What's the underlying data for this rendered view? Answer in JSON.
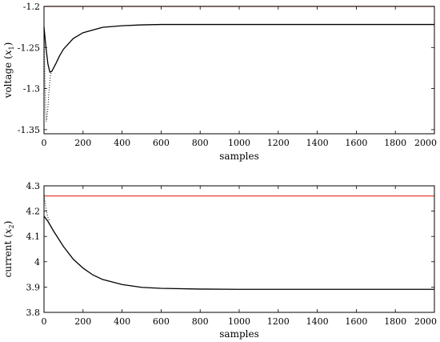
{
  "chart_data": [
    {
      "type": "line",
      "xlabel": "samples",
      "ylabel": "voltage (x1)",
      "ylabel_main": "voltage",
      "ylabel_var": "x",
      "ylabel_sub": "1",
      "xlim": [
        0,
        2000
      ],
      "ylim": [
        -1.355,
        -1.2
      ],
      "xticks": [
        0,
        200,
        400,
        600,
        800,
        1000,
        1200,
        1400,
        1600,
        1800,
        2000
      ],
      "yticks": [
        -1.35,
        -1.3,
        -1.25,
        -1.2
      ],
      "ytick_labels": [
        "-1.35",
        "-1.3",
        "-1.25",
        "-1.2"
      ],
      "grid": false,
      "reference": {
        "y": -1.2,
        "color": "#e8443a"
      },
      "series": [
        {
          "style": "dotted",
          "color": "#000000",
          "points": [
            [
              0,
              -1.22
            ],
            [
              2,
              -1.25
            ],
            [
              5,
              -1.29
            ],
            [
              8,
              -1.32
            ],
            [
              12,
              -1.34
            ],
            [
              18,
              -1.33
            ],
            [
              25,
              -1.305
            ],
            [
              32,
              -1.285
            ],
            [
              40,
              -1.278
            ]
          ]
        },
        {
          "style": "solid",
          "color": "#000000",
          "points": [
            [
              0,
              -1.225
            ],
            [
              10,
              -1.25
            ],
            [
              20,
              -1.27
            ],
            [
              30,
              -1.28
            ],
            [
              40,
              -1.279
            ],
            [
              60,
              -1.27
            ],
            [
              80,
              -1.26
            ],
            [
              100,
              -1.252
            ],
            [
              150,
              -1.239
            ],
            [
              200,
              -1.232
            ],
            [
              300,
              -1.2255
            ],
            [
              400,
              -1.2235
            ],
            [
              500,
              -1.2225
            ],
            [
              600,
              -1.222
            ],
            [
              800,
              -1.222
            ],
            [
              1000,
              -1.222
            ],
            [
              1500,
              -1.222
            ],
            [
              2000,
              -1.222
            ]
          ]
        }
      ]
    },
    {
      "type": "line",
      "xlabel": "samples",
      "ylabel": "current (x2)",
      "ylabel_main": "current",
      "ylabel_var": "x",
      "ylabel_sub": "2",
      "xlim": [
        0,
        2000
      ],
      "ylim": [
        3.8,
        4.3
      ],
      "xticks": [
        0,
        200,
        400,
        600,
        800,
        1000,
        1200,
        1400,
        1600,
        1800,
        2000
      ],
      "yticks": [
        3.8,
        3.9,
        4,
        4.1,
        4.2,
        4.3
      ],
      "ytick_labels": [
        "3.8",
        "3.9",
        "4",
        "4.1",
        "4.2",
        "4.3"
      ],
      "grid": false,
      "reference": {
        "y": 4.26,
        "color": "#e8443a"
      },
      "series": [
        {
          "style": "dotted",
          "color": "#000000",
          "points": [
            [
              0,
              4.27
            ],
            [
              3,
              4.25
            ],
            [
              6,
              4.23
            ],
            [
              10,
              4.21
            ],
            [
              15,
              4.19
            ],
            [
              22,
              4.17
            ],
            [
              30,
              4.16
            ]
          ]
        },
        {
          "style": "solid",
          "color": "#000000",
          "points": [
            [
              0,
              4.18
            ],
            [
              20,
              4.16
            ],
            [
              50,
              4.12
            ],
            [
              100,
              4.06
            ],
            [
              150,
              4.01
            ],
            [
              200,
              3.975
            ],
            [
              250,
              3.948
            ],
            [
              300,
              3.93
            ],
            [
              400,
              3.91
            ],
            [
              500,
              3.899
            ],
            [
              600,
              3.895
            ],
            [
              800,
              3.892
            ],
            [
              1000,
              3.891
            ],
            [
              1500,
              3.891
            ],
            [
              2000,
              3.891
            ]
          ]
        }
      ]
    }
  ]
}
